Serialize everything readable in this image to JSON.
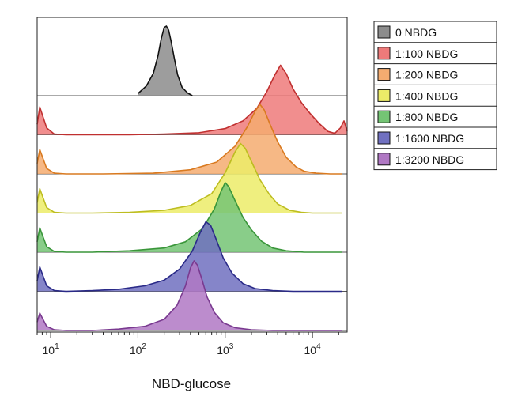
{
  "chart_data": {
    "type": "area",
    "chart_style": "staggered overlaid flow cytometry histograms",
    "xlabel": "NBD-glucose",
    "ylabel": "",
    "x_scale": "log",
    "xlim": [
      7,
      25000
    ],
    "x_ticks": [
      {
        "value": 10,
        "base": "10",
        "exp": "1"
      },
      {
        "value": 100,
        "base": "10",
        "exp": "2"
      },
      {
        "value": 1000,
        "base": "10",
        "exp": "3"
      },
      {
        "value": 10000,
        "base": "10",
        "exp": "4"
      }
    ],
    "y_ticks": "none",
    "grid": false,
    "legend_position": "right",
    "series": [
      {
        "name": "0 NBDG",
        "color": "#8c8c8c",
        "stroke": "#111111",
        "x": [
          100,
          125,
          150,
          170,
          185,
          200,
          212,
          225,
          240,
          260,
          285,
          320,
          370,
          420
        ],
        "y": [
          0.03,
          0.14,
          0.32,
          0.58,
          0.82,
          0.98,
          1.0,
          0.94,
          0.78,
          0.55,
          0.3,
          0.12,
          0.04,
          0.0
        ]
      },
      {
        "name": "1:100 NBDG",
        "color": "#ee7a7a",
        "stroke": "#c03030",
        "x": [
          7,
          7.5,
          9,
          11,
          15,
          30,
          80,
          200,
          500,
          1000,
          1600,
          2300,
          3000,
          3700,
          4300,
          5000,
          6000,
          7500,
          9500,
          12000,
          15000,
          18000,
          21000,
          23000,
          25000
        ],
        "y": [
          0.15,
          0.4,
          0.1,
          0.01,
          0.0,
          0.0,
          0.0,
          0.01,
          0.03,
          0.09,
          0.2,
          0.38,
          0.62,
          0.86,
          1.0,
          0.88,
          0.66,
          0.46,
          0.3,
          0.16,
          0.05,
          0.02,
          0.1,
          0.2,
          0.05
        ]
      },
      {
        "name": "1:200 NBDG",
        "color": "#f4ac70",
        "stroke": "#d97a20",
        "x": [
          7,
          7.5,
          9,
          11,
          15,
          40,
          150,
          400,
          800,
          1300,
          1800,
          2200,
          2500,
          2800,
          3300,
          4000,
          5000,
          6500,
          8000,
          11000,
          16000,
          22000
        ],
        "y": [
          0.15,
          0.35,
          0.08,
          0.01,
          0.0,
          0.0,
          0.01,
          0.06,
          0.17,
          0.4,
          0.68,
          0.9,
          1.0,
          0.92,
          0.7,
          0.46,
          0.24,
          0.1,
          0.04,
          0.01,
          0.0,
          0.0
        ]
      },
      {
        "name": "1:400 NBDG",
        "color": "#ecec68",
        "stroke": "#bdbd20",
        "x": [
          7,
          7.5,
          9,
          11,
          15,
          30,
          80,
          200,
          400,
          700,
          1000,
          1300,
          1500,
          1700,
          2000,
          2500,
          3200,
          4000,
          5500,
          7500,
          10000,
          15000,
          22000
        ],
        "y": [
          0.15,
          0.35,
          0.08,
          0.01,
          0.0,
          0.0,
          0.01,
          0.04,
          0.11,
          0.28,
          0.58,
          0.88,
          1.0,
          0.93,
          0.74,
          0.48,
          0.27,
          0.13,
          0.04,
          0.01,
          0.0,
          0.0,
          0.0
        ]
      },
      {
        "name": "1:800 NBDG",
        "color": "#74c474",
        "stroke": "#3a963a",
        "x": [
          7,
          7.5,
          9,
          11,
          15,
          30,
          80,
          200,
          350,
          550,
          750,
          900,
          1000,
          1100,
          1300,
          1600,
          2000,
          2600,
          3500,
          5000,
          8000,
          15000,
          22000
        ],
        "y": [
          0.15,
          0.35,
          0.08,
          0.01,
          0.0,
          0.0,
          0.02,
          0.06,
          0.15,
          0.34,
          0.62,
          0.88,
          1.0,
          0.94,
          0.74,
          0.5,
          0.32,
          0.16,
          0.06,
          0.02,
          0.0,
          0.0,
          0.0
        ]
      },
      {
        "name": "1:1600 NBDG",
        "color": "#7070c0",
        "stroke": "#2a2a88",
        "x": [
          7,
          7.5,
          9,
          11,
          15,
          30,
          60,
          120,
          200,
          300,
          420,
          520,
          600,
          680,
          780,
          950,
          1200,
          1600,
          2200,
          3500,
          6000,
          12000,
          22000
        ],
        "y": [
          0.15,
          0.35,
          0.08,
          0.01,
          0.0,
          0.01,
          0.03,
          0.08,
          0.16,
          0.32,
          0.58,
          0.85,
          1.0,
          0.95,
          0.76,
          0.48,
          0.26,
          0.11,
          0.04,
          0.01,
          0.0,
          0.0,
          0.0
        ]
      },
      {
        "name": "1:3200 NBDG",
        "color": "#b078c4",
        "stroke": "#7a3a90",
        "x": [
          7,
          7.5,
          9,
          11,
          15,
          30,
          60,
          120,
          200,
          280,
          350,
          400,
          440,
          480,
          540,
          620,
          750,
          950,
          1300,
          2000,
          3500,
          8000,
          22000
        ],
        "y": [
          0.12,
          0.25,
          0.06,
          0.01,
          0.0,
          0.0,
          0.02,
          0.06,
          0.16,
          0.36,
          0.64,
          0.9,
          1.0,
          0.94,
          0.74,
          0.48,
          0.26,
          0.11,
          0.04,
          0.01,
          0.0,
          0.0,
          0.0
        ]
      }
    ]
  }
}
